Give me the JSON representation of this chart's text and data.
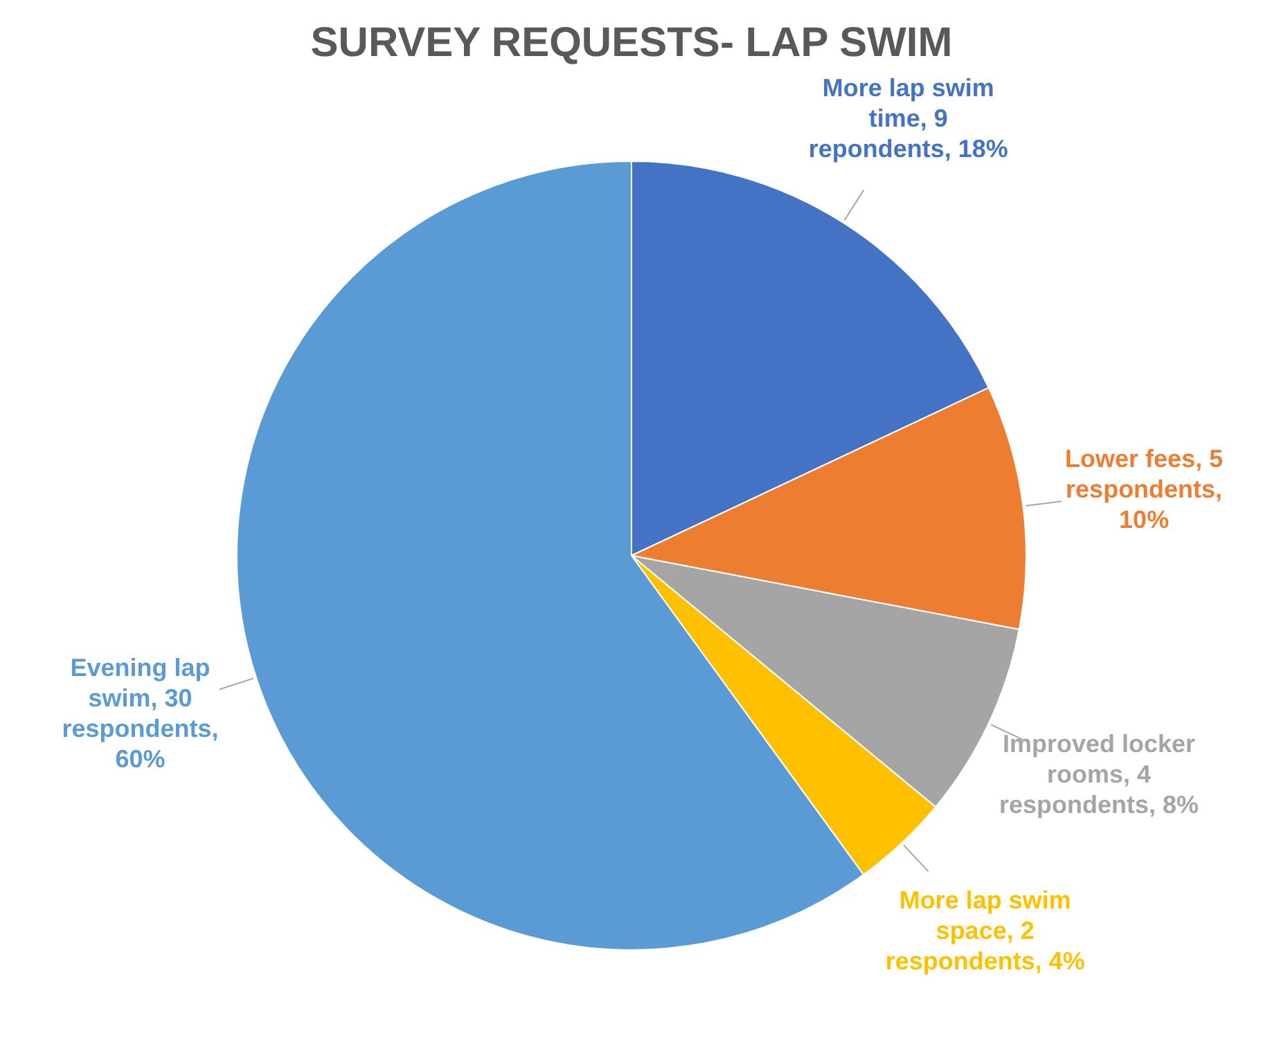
{
  "chart_data": {
    "type": "pie",
    "title": "SURVEY REQUESTS- LAP SWIM",
    "categories": [
      "More lap swim time",
      "Lower fees",
      "Improved locker rooms",
      "More lap swim space",
      "Evening lap swim"
    ],
    "values": [
      9,
      5,
      4,
      2,
      30
    ],
    "colors": [
      "#4472c4",
      "#ed7d31",
      "#a5a5a5",
      "#ffc000",
      "#5b9bd5"
    ],
    "value_labels": [
      "9 repondents, 18%",
      "5 respondents, 10%",
      "4 respondents, 8%",
      "2 respondents, 4%",
      "30 respondents, 60%"
    ],
    "legend": false
  }
}
